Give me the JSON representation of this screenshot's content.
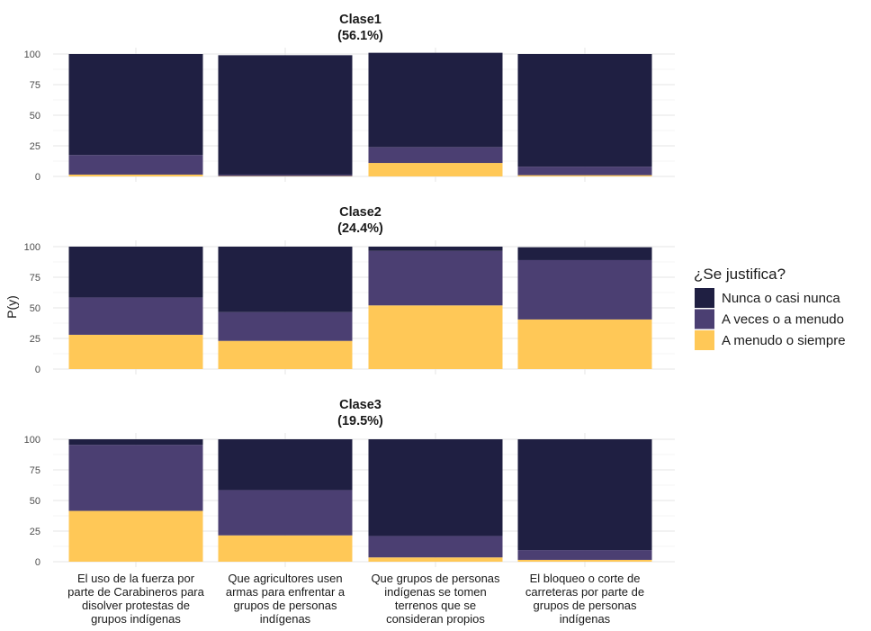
{
  "chart_data": {
    "type": "bar",
    "stacked": true,
    "ylabel": "P(y)",
    "ylim": [
      0,
      100
    ],
    "yticks": [
      0,
      25,
      50,
      75,
      100
    ],
    "categories": [
      [
        "El uso de la fuerza por",
        "parte de Carabineros para",
        "disolver protestas de",
        "grupos indígenas"
      ],
      [
        "Que agricultores usen",
        "armas para enfrentar a",
        "grupos de personas",
        "indígenas"
      ],
      [
        "Que grupos de personas",
        "indígenas se tomen",
        "terrenos que se",
        "consideran propios"
      ],
      [
        "El bloqueo o corte de",
        "carreteras por parte de",
        "grupos de personas",
        "indígenas"
      ]
    ],
    "legend": {
      "title": "¿Se justifica?",
      "position": "right",
      "entries": [
        {
          "name": "Nunca o casi nunca",
          "color": "#1f1f42"
        },
        {
          "name": "A veces o a menudo",
          "color": "#4b3f72"
        },
        {
          "name": "A menudo o siempre",
          "color": "#ffc857"
        }
      ]
    },
    "panels": [
      {
        "title": [
          "Clase1",
          "(56.1%)"
        ],
        "series": [
          {
            "name": "A menudo o siempre",
            "values": [
              1.5,
              0.3,
              11,
              1
            ]
          },
          {
            "name": "A veces o a menudo",
            "values": [
              16,
              1.2,
              13,
              7
            ]
          },
          {
            "name": "Nunca o casi nunca",
            "values": [
              82.5,
              97.5,
              77,
              92
            ]
          }
        ]
      },
      {
        "title": [
          "Clase2",
          "(24.4%)"
        ],
        "series": [
          {
            "name": "A menudo o siempre",
            "values": [
              28,
              23,
              52,
              40.5
            ]
          },
          {
            "name": "A veces o a menudo",
            "values": [
              30.5,
              23.5,
              44.5,
              48.5
            ]
          },
          {
            "name": "Nunca o casi nunca",
            "values": [
              41.5,
              53.5,
              3.5,
              10.5
            ]
          }
        ]
      },
      {
        "title": [
          "Clase3",
          "(19.5%)"
        ],
        "series": [
          {
            "name": "A menudo o siempre",
            "values": [
              41.5,
              21.5,
              3.5,
              1.5
            ]
          },
          {
            "name": "A veces o a menudo",
            "values": [
              54,
              37,
              17.5,
              8
            ]
          },
          {
            "name": "Nunca o casi nunca",
            "values": [
              4.5,
              41.5,
              79,
              90.5
            ]
          }
        ]
      }
    ]
  }
}
